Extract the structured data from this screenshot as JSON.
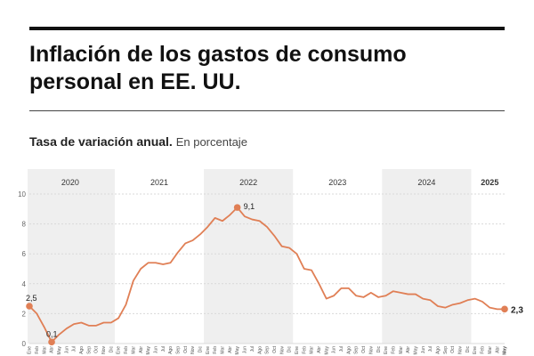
{
  "header": {
    "title": "Inflación de los gastos de consumo personal en EE. UU.",
    "subtitle_strong": "Tasa de variación anual.",
    "subtitle_unit": "En porcentaje"
  },
  "colors": {
    "line": "#e07f55",
    "shade": "#efefef",
    "grid": "#d9d9d9",
    "text": "#222222"
  },
  "chart_data": {
    "type": "line",
    "ylim": [
      0,
      10
    ],
    "yticks": [
      0,
      2,
      4,
      6,
      8,
      10
    ],
    "ytick_labels": [
      "0",
      "2",
      "4",
      "6",
      "8",
      "10"
    ],
    "grid": true,
    "years": [
      "2020",
      "2021",
      "2022",
      "2023",
      "2024",
      "2025"
    ],
    "month_labels": [
      "Ene",
      "Feb",
      "Mar",
      "Abr",
      "May",
      "Jun",
      "Jul",
      "Ago",
      "Sep",
      "Oct",
      "Nov",
      "Dic",
      "Ene",
      "Feb",
      "Mar",
      "Abr",
      "May",
      "Jun",
      "Jul",
      "Ago",
      "Sep",
      "Oct",
      "Nov",
      "Dic",
      "Ene",
      "Feb",
      "Mar",
      "Abr",
      "May",
      "Jun",
      "Jul",
      "Ago",
      "Sep",
      "Oct",
      "Nov",
      "Dic",
      "Ene",
      "Feb",
      "Mar",
      "Abr",
      "May",
      "Jun",
      "Jul",
      "Ago",
      "Sep",
      "Oct",
      "Nov",
      "Dic",
      "Ene",
      "Feb",
      "Mar",
      "Abr",
      "May",
      "Jun",
      "Jul",
      "Ago",
      "Sep",
      "Oct",
      "Nov",
      "Dic",
      "Ene",
      "Feb",
      "Mar",
      "Abr",
      "May"
    ],
    "x": [
      "2020-01",
      "2020-02",
      "2020-03",
      "2020-04",
      "2020-05",
      "2020-06",
      "2020-07",
      "2020-08",
      "2020-09",
      "2020-10",
      "2020-11",
      "2020-12",
      "2021-01",
      "2021-02",
      "2021-03",
      "2021-04",
      "2021-05",
      "2021-06",
      "2021-07",
      "2021-08",
      "2021-09",
      "2021-10",
      "2021-11",
      "2021-12",
      "2022-01",
      "2022-02",
      "2022-03",
      "2022-04",
      "2022-05",
      "2022-06",
      "2022-07",
      "2022-08",
      "2022-09",
      "2022-10",
      "2022-11",
      "2022-12",
      "2023-01",
      "2023-02",
      "2023-03",
      "2023-04",
      "2023-05",
      "2023-06",
      "2023-07",
      "2023-08",
      "2023-09",
      "2023-10",
      "2023-11",
      "2023-12",
      "2024-01",
      "2024-02",
      "2024-03",
      "2024-04",
      "2024-05",
      "2024-06",
      "2024-07",
      "2024-08",
      "2024-09",
      "2024-10",
      "2024-11",
      "2024-12",
      "2025-01",
      "2025-02",
      "2025-03",
      "2025-04",
      "2025-05"
    ],
    "values": [
      2.5,
      2.0,
      1.1,
      0.1,
      0.6,
      1.0,
      1.3,
      1.4,
      1.2,
      1.2,
      1.4,
      1.4,
      1.7,
      2.6,
      4.2,
      5.0,
      5.4,
      5.4,
      5.3,
      5.4,
      6.1,
      6.7,
      6.9,
      7.3,
      7.8,
      8.4,
      8.2,
      8.6,
      9.1,
      8.5,
      8.3,
      8.2,
      7.8,
      7.2,
      6.5,
      6.4,
      6.0,
      5.0,
      4.9,
      4.0,
      3.0,
      3.2,
      3.7,
      3.7,
      3.2,
      3.1,
      3.4,
      3.1,
      3.2,
      3.5,
      3.4,
      3.3,
      3.3,
      3.0,
      2.9,
      2.5,
      2.4,
      2.6,
      2.7,
      2.9,
      3.0,
      2.8,
      2.4,
      2.3,
      2.3
    ],
    "annotations": [
      {
        "index": 0,
        "label": "2,5"
      },
      {
        "index": 3,
        "label": "0,1"
      },
      {
        "index": 28,
        "label": "9,1"
      },
      {
        "index": 64,
        "label": "2,3"
      }
    ]
  }
}
